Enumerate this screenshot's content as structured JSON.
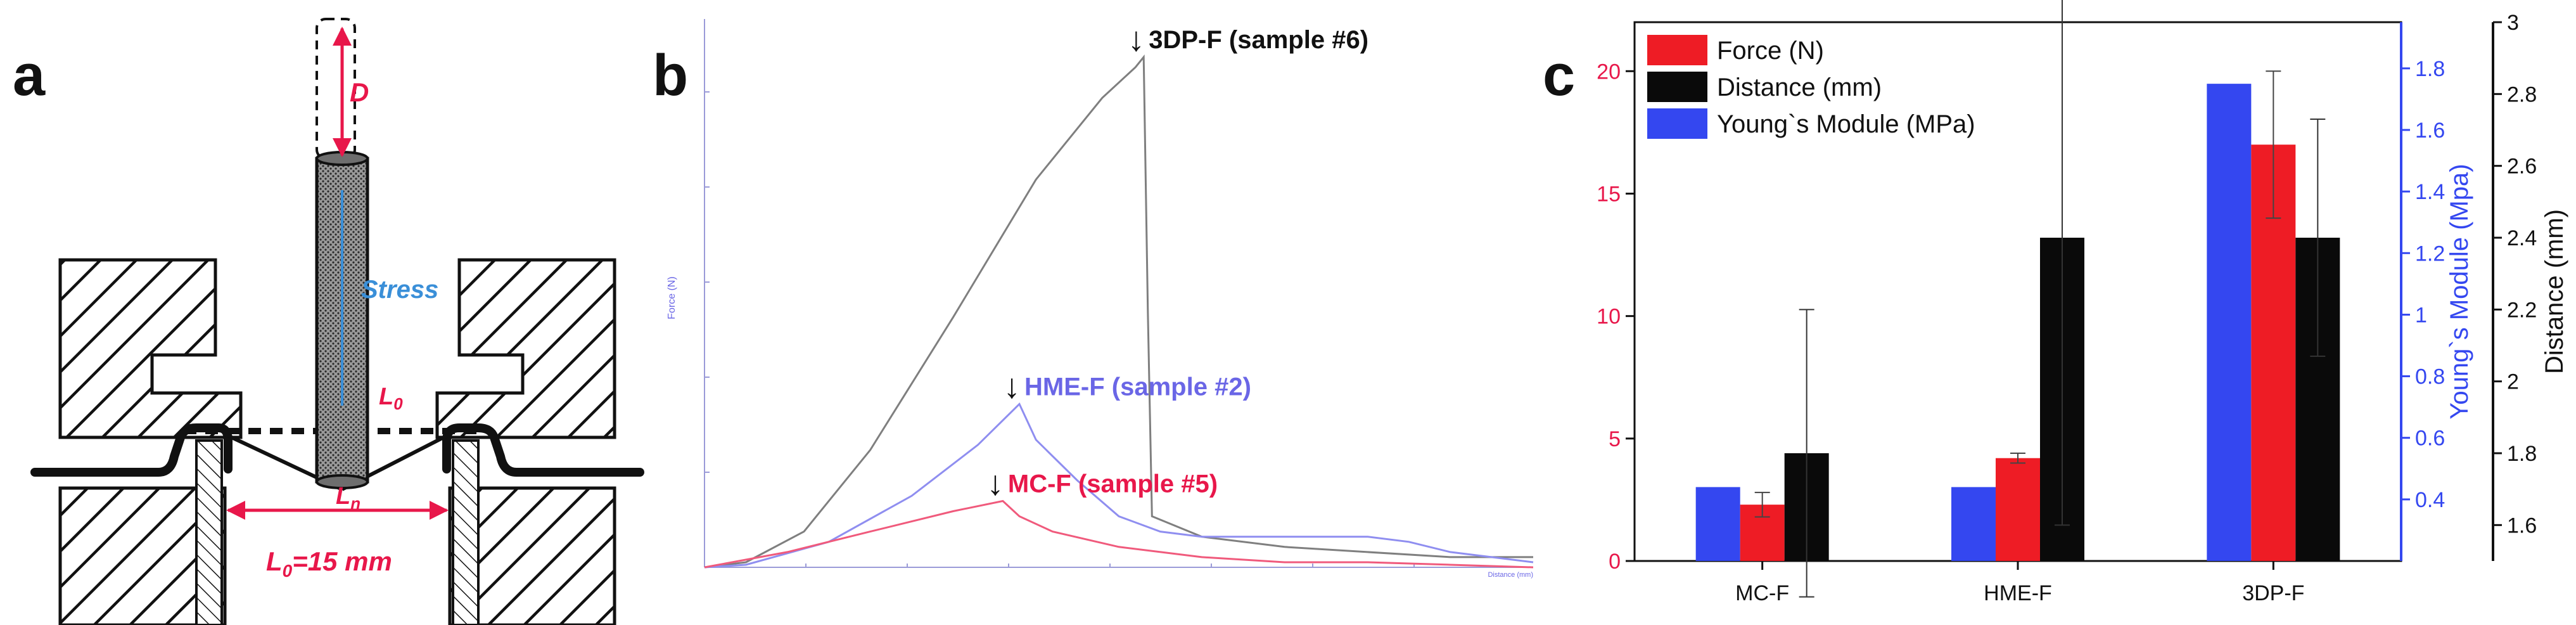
{
  "panels": {
    "a": {
      "letter": "a",
      "labels": {
        "D": "D",
        "stress": "Stress",
        "L0_top": "L",
        "L0_top_sub": "0",
        "Ln": "L",
        "Ln_sub": "n",
        "width_label_main": "L",
        "width_label_sub": "0",
        "width_label_rest": "=15 mm"
      },
      "colors": {
        "red": "#e8174a",
        "blue": "#3a8fd8",
        "black": "#111111"
      }
    },
    "b": {
      "letter": "b",
      "y_axis_label": "Force (N)",
      "x_axis_label": "Distance (mm)",
      "annotations": [
        {
          "text": "3DP-F (sample #6)",
          "color": "#111111"
        },
        {
          "text": "HME-F (sample #2)",
          "color": "#6a66e6"
        },
        {
          "text": "MC-F (sample #5)",
          "color": "#e8174a"
        }
      ],
      "arrow_glyph": "↓"
    },
    "c": {
      "letter": "c"
    }
  },
  "chart_data": [
    {
      "id": "panel-b",
      "type": "line",
      "title": "",
      "xlabel": "Distance (mm)",
      "ylabel": "Force (N)",
      "xlim": [
        0,
        1
      ],
      "ylim": [
        0,
        1
      ],
      "series": [
        {
          "name": "3DP-F (sample #6)",
          "color": "#7f7f7f",
          "x": [
            0.0,
            0.05,
            0.12,
            0.2,
            0.3,
            0.4,
            0.48,
            0.52,
            0.53,
            0.535,
            0.54,
            0.6,
            0.7,
            0.8,
            0.9,
            1.0
          ],
          "y": [
            0.0,
            0.01,
            0.07,
            0.23,
            0.49,
            0.76,
            0.92,
            0.98,
            1.0,
            0.5,
            0.1,
            0.06,
            0.04,
            0.03,
            0.02,
            0.02
          ]
        },
        {
          "name": "HME-F (sample #2)",
          "color": "#8f8ef0",
          "x": [
            0.0,
            0.05,
            0.15,
            0.25,
            0.33,
            0.38,
            0.4,
            0.45,
            0.5,
            0.55,
            0.6,
            0.7,
            0.8,
            0.85,
            0.9,
            1.0
          ],
          "y": [
            0.0,
            0.005,
            0.05,
            0.14,
            0.24,
            0.32,
            0.25,
            0.17,
            0.1,
            0.07,
            0.06,
            0.06,
            0.06,
            0.05,
            0.03,
            0.01
          ]
        },
        {
          "name": "MC-F (sample #5)",
          "color": "#f05a7c",
          "x": [
            0.0,
            0.1,
            0.2,
            0.3,
            0.36,
            0.38,
            0.42,
            0.5,
            0.6,
            0.7,
            0.8,
            0.9,
            1.0
          ],
          "y": [
            0.0,
            0.03,
            0.07,
            0.11,
            0.13,
            0.1,
            0.07,
            0.04,
            0.02,
            0.01,
            0.01,
            0.005,
            0.0
          ]
        }
      ]
    },
    {
      "id": "panel-c",
      "type": "bar",
      "title": "",
      "categories": [
        "MC-F",
        "HME-F",
        "3DP-F"
      ],
      "legend": [
        "Force (N)",
        "Distance (mm)",
        "Young`s Module (MPa)"
      ],
      "legend_position": "top-left",
      "series": [
        {
          "name": "Young`s Module (MPa)",
          "axis": "right1",
          "color": "#3447f0",
          "values": [
            0.44,
            0.44,
            1.75
          ],
          "errors": [
            0,
            0,
            0
          ]
        },
        {
          "name": "Force (N)",
          "axis": "left",
          "color": "#ee1c25",
          "values": [
            2.3,
            4.2,
            17.0
          ],
          "errors": [
            0.5,
            0.2,
            3.0
          ]
        },
        {
          "name": "Distance (mm)",
          "axis": "right2",
          "color": "#0a0a0a",
          "values": [
            1.8,
            2.4,
            2.4
          ],
          "errors": [
            0.4,
            0.8,
            0.33
          ]
        }
      ],
      "axes": {
        "left": {
          "label": "",
          "ylim": [
            0,
            22
          ],
          "ticks": [
            0,
            5,
            10,
            15,
            20
          ],
          "color": "#e8174a"
        },
        "right1": {
          "label": "Young`s Module (Mpa)",
          "ylim": [
            0.2,
            1.95
          ],
          "ticks": [
            0.4,
            0.6,
            0.8,
            1.0,
            1.2,
            1.4,
            1.6,
            1.8
          ],
          "color": "#3447f0"
        },
        "right2": {
          "label": "Distance (mm)",
          "ylim": [
            1.5,
            3.0
          ],
          "ticks": [
            1.6,
            1.8,
            2.0,
            2.2,
            2.4,
            2.6,
            2.8,
            3.0
          ],
          "color": "#111111"
        }
      }
    }
  ]
}
